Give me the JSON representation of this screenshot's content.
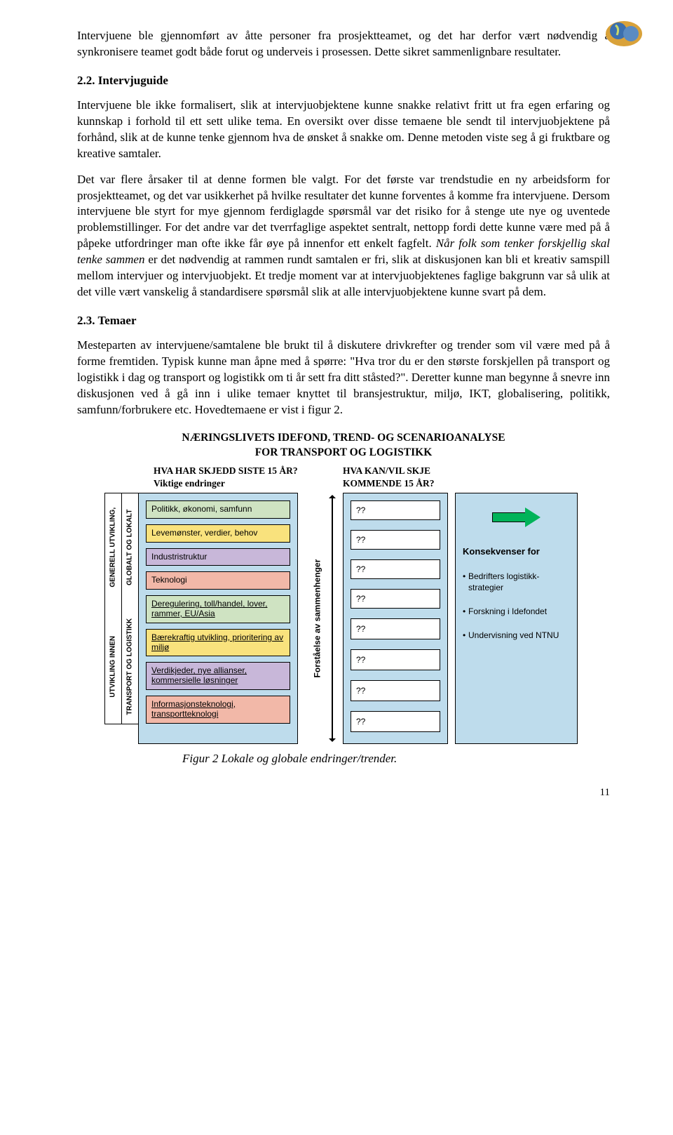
{
  "logo": {
    "bg": "#d9a23a",
    "globe": "#3b6fae"
  },
  "paragraphs": {
    "p1": "Intervjuene ble gjennomført av åtte personer fra prosjektteamet, og det har derfor vært nødvendig å synkronisere teamet godt både forut og underveis i prosessen. Dette sikret sammenlignbare resultater.",
    "h22": "2.2.  Intervjuguide",
    "p2": "Intervjuene ble ikke formalisert, slik at intervjuobjektene kunne snakke relativt fritt ut fra egen erfaring og kunnskap i forhold til ett sett ulike tema. En oversikt over disse temaene ble sendt til intervjuobjektene på forhånd, slik at de kunne tenke gjennom hva de ønsket å snakke om. Denne metoden viste seg å gi fruktbare og kreative samtaler.",
    "p3a": "Det var flere årsaker til at denne formen ble valgt. For det første var trendstudie en ny arbeidsform for prosjektteamet, og det var usikkerhet på hvilke resultater det kunne forventes å komme fra intervjuene. Dersom intervjuene ble styrt for mye gjennom ferdiglagde spørsmål var det risiko for å stenge ute nye og uventede problemstillinger. For det andre var det tverrfaglige aspektet sentralt, nettopp fordi dette kunne være med på å påpeke utfordringer man ofte ikke får øye på innenfor ett enkelt fagfelt. ",
    "p3b": "Når folk som tenker forskjellig skal tenke sammen",
    "p3c": " er det nødvendig at rammen rundt samtalen er fri, slik at diskusjonen kan bli et kreativ samspill mellom intervjuer og intervjuobjekt. Et tredje moment var at intervjuobjektenes faglige bakgrunn var så ulik at det ville vært vanskelig å standardisere spørsmål slik at alle intervjuobjektene kunne svart på dem.",
    "h23": "2.3.  Temaer",
    "p4": "Mesteparten av intervjuene/samtalene ble brukt til å diskutere drivkrefter og trender som vil være med på å forme fremtiden. Typisk kunne man åpne med å spørre: \"Hva tror du er den største forskjellen på transport og logistikk i dag og transport og logistikk om ti år sett fra ditt ståsted?\". Deretter kunne man begynne å snevre inn diskusjonen ved å gå inn i ulike temaer knyttet til bransjestruktur, miljø, IKT, globalisering, politikk, samfunn/forbrukere etc. Hovedtemaene er vist i figur 2."
  },
  "diagram": {
    "title1": "NÆRINGSLIVETS IDEFOND, TREND- OG SCENARIOANALYSE",
    "title2": "FOR TRANSPORT OG LOGISTIKK",
    "header_left_1": "HVA HAR SKJEDD SISTE 15 ÅR?",
    "header_left_2": "Viktige endringer",
    "header_right_1": "HVA KAN/VIL SKJE",
    "header_right_2": "KOMMENDE 15 ÅR?",
    "vlabel_top_1": "GENERELL UTVIKLING,",
    "vlabel_top_2": "GLOBALT OG LOKALT",
    "vlabel_bot_1": "UTVIKLING INNEN",
    "vlabel_bot_2": "TRANSPORT OG LOGISTIKK",
    "forstaelse": "Forståelse av sammenhenger",
    "left_rows": [
      {
        "text": "Politikk, økonomi, samfunn",
        "bg": "#cfe3c2"
      },
      {
        "text": "Levemønster, verdier, behov",
        "bg": "#f9e27d"
      },
      {
        "text": "Industristruktur",
        "bg": "#c8b7d9"
      },
      {
        "text": "Teknologi",
        "bg": "#f2b8a8"
      },
      {
        "text": "Deregulering, toll/handel, lover, rammer, EU/Asia",
        "bg": "#cfe3c2"
      },
      {
        "text": "Bærekraftig utvikling, prioritering av miljø",
        "bg": "#f9e27d"
      },
      {
        "text": "Verdikjeder, nye allianser, kommersielle løsninger",
        "bg": "#c8b7d9"
      },
      {
        "text": "Informasjonsteknologi, transportteknologi",
        "bg": "#f2b8a8"
      }
    ],
    "mid_rows": [
      "??",
      "??",
      "??",
      "??",
      "??",
      "??",
      "??",
      "??"
    ],
    "kons_title": "Konsekvenser for",
    "kons": [
      "Bedrifters logistikk-strategier",
      "Forskning i Idefondet",
      "Undervisning ved NTNU"
    ],
    "panel_bg": "#bedcec"
  },
  "caption": "Figur 2 Lokale og globale endringer/trender.",
  "page_number": "11"
}
